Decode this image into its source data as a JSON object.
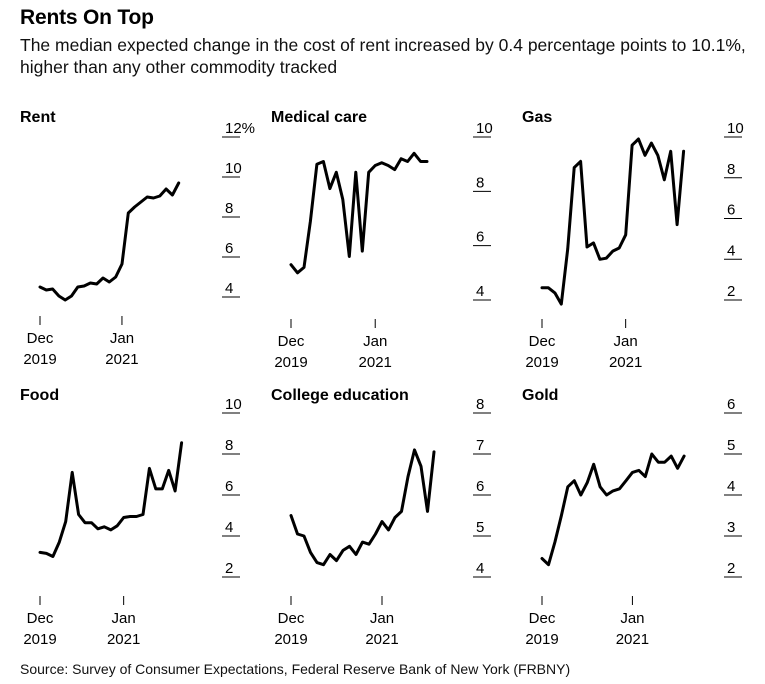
{
  "title": "Rents On Top",
  "subtitle": "The median expected change in the cost of rent increased by 0.4 percentage points to 10.1%, higher than any other commodity tracked",
  "source": "Source: Survey of Consumer Expectations, Federal Reserve Bank of New York (FRBNY)",
  "colors": {
    "line": "#000000",
    "grid": "#000000",
    "text": "#000000"
  },
  "chart_data": [
    {
      "type": "line",
      "title": "Rent",
      "x_ticks": [
        {
          "month": 0,
          "labels": [
            "Dec",
            "2019"
          ]
        },
        {
          "month": 13,
          "labels": [
            "Jan",
            "2021"
          ]
        }
      ],
      "y_ticks": [
        4,
        6,
        8,
        10,
        12
      ],
      "y_tick_labels": [
        "4",
        "6",
        "8",
        "10",
        "12%"
      ],
      "ylim": [
        3.5,
        12.5
      ],
      "series": [
        {
          "x": [
            0,
            1,
            2,
            3,
            4,
            5,
            6,
            7,
            8,
            9,
            10,
            11,
            12,
            13,
            14,
            15,
            16,
            17,
            18,
            19,
            20,
            21,
            22,
            23
          ],
          "values": [
            4.5,
            4.35,
            4.4,
            4.05,
            3.85,
            4.05,
            4.5,
            4.55,
            4.7,
            4.65,
            4.95,
            4.75,
            5.0,
            5.65,
            8.2,
            8.5,
            8.75,
            9.0,
            8.95,
            9.05,
            9.4,
            9.1,
            9.7,
            null
          ]
        }
      ]
    },
    {
      "type": "line",
      "title": "Medical care",
      "x_ticks": [
        {
          "month": 0,
          "labels": [
            "Dec",
            "2019"
          ]
        },
        {
          "month": 13,
          "labels": [
            "Jan",
            "2021"
          ]
        }
      ],
      "y_ticks": [
        4,
        6,
        8,
        10
      ],
      "y_tick_labels": [
        "4",
        "6",
        "8",
        "10"
      ],
      "ylim": [
        3.5,
        10.5
      ],
      "series": [
        {
          "x": [
            0,
            1,
            2,
            3,
            4,
            5,
            6,
            7,
            8,
            9,
            10,
            11,
            12,
            13,
            14,
            15,
            16,
            17,
            18,
            19,
            20,
            21,
            22,
            23
          ],
          "values": [
            5.3,
            5.0,
            5.2,
            6.9,
            9.0,
            9.1,
            8.1,
            8.7,
            7.7,
            5.6,
            8.7,
            5.8,
            8.7,
            8.95,
            9.05,
            8.95,
            8.8,
            9.2,
            9.1,
            9.4,
            9.1,
            9.1,
            null,
            null
          ]
        }
      ]
    },
    {
      "type": "line",
      "title": "Gas",
      "x_ticks": [
        {
          "month": 0,
          "labels": [
            "Dec",
            "2019"
          ]
        },
        {
          "month": 13,
          "labels": [
            "Jan",
            "2021"
          ]
        }
      ],
      "y_ticks": [
        2,
        4,
        6,
        8,
        10
      ],
      "y_tick_labels": [
        "2",
        "4",
        "6",
        "8",
        "10"
      ],
      "ylim": [
        1.5,
        10.5
      ],
      "series": [
        {
          "x": [
            0,
            1,
            2,
            3,
            4,
            5,
            6,
            7,
            8,
            9,
            10,
            11,
            12,
            13,
            14,
            15,
            16,
            17,
            18,
            19,
            20,
            21,
            22,
            23
          ],
          "values": [
            2.6,
            2.6,
            2.35,
            1.8,
            4.5,
            8.5,
            8.8,
            4.6,
            4.8,
            4.0,
            4.05,
            4.4,
            4.55,
            5.2,
            9.6,
            9.9,
            9.1,
            9.7,
            9.1,
            7.9,
            9.3,
            5.7,
            9.3,
            null
          ]
        }
      ]
    },
    {
      "type": "line",
      "title": "Food",
      "x_ticks": [
        {
          "month": 0,
          "labels": [
            "Dec",
            "2019"
          ]
        },
        {
          "month": 13,
          "labels": [
            "Jan",
            "2021"
          ]
        }
      ],
      "y_ticks": [
        2,
        4,
        6,
        8,
        10
      ],
      "y_tick_labels": [
        "2",
        "4",
        "6",
        "8",
        "10"
      ],
      "ylim": [
        1.5,
        10.5
      ],
      "series": [
        {
          "x": [
            0,
            1,
            2,
            3,
            4,
            5,
            6,
            7,
            8,
            9,
            10,
            11,
            12,
            13,
            14,
            15,
            16,
            17,
            18,
            19,
            20,
            21,
            22,
            23
          ],
          "values": [
            3.2,
            3.15,
            3.0,
            3.7,
            4.7,
            7.1,
            5.05,
            4.65,
            4.65,
            4.35,
            4.45,
            4.3,
            4.5,
            4.9,
            4.95,
            4.95,
            5.05,
            7.3,
            6.3,
            6.3,
            7.2,
            6.2,
            8.55,
            null
          ]
        }
      ]
    },
    {
      "type": "line",
      "title": "College education",
      "x_ticks": [
        {
          "month": 0,
          "labels": [
            "Dec",
            "2019"
          ]
        },
        {
          "month": 14,
          "labels": [
            "Jan",
            "2021"
          ]
        }
      ],
      "y_ticks": [
        4,
        5,
        6,
        7,
        8
      ],
      "y_tick_labels": [
        "4",
        "5",
        "6",
        "7",
        "8"
      ],
      "ylim": [
        3.75,
        8.25
      ],
      "series": [
        {
          "x": [
            0,
            1,
            2,
            3,
            4,
            5,
            6,
            7,
            8,
            9,
            10,
            11,
            12,
            13,
            14,
            15,
            16,
            17,
            18,
            19,
            20,
            21,
            22,
            23,
            24
          ],
          "values": [
            5.5,
            5.05,
            5.0,
            4.6,
            4.35,
            4.3,
            4.55,
            4.4,
            4.65,
            4.75,
            4.55,
            4.85,
            4.8,
            5.05,
            5.35,
            5.15,
            5.45,
            5.6,
            6.45,
            7.1,
            6.7,
            5.6,
            7.05,
            null,
            null
          ]
        }
      ]
    },
    {
      "type": "line",
      "title": "Gold",
      "x_ticks": [
        {
          "month": 0,
          "labels": [
            "Dec",
            "2019"
          ]
        },
        {
          "month": 14,
          "labels": [
            "Jan",
            "2021"
          ]
        }
      ],
      "y_ticks": [
        2,
        3,
        4,
        5,
        6
      ],
      "y_tick_labels": [
        "2",
        "3",
        "4",
        "5",
        "6"
      ],
      "ylim": [
        1.75,
        6.25
      ],
      "series": [
        {
          "x": [
            0,
            1,
            2,
            3,
            4,
            5,
            6,
            7,
            8,
            9,
            10,
            11,
            12,
            13,
            14,
            15,
            16,
            17,
            18,
            19,
            20,
            21,
            22,
            23,
            24
          ],
          "values": [
            2.45,
            2.3,
            2.85,
            3.5,
            4.2,
            4.35,
            4.0,
            4.3,
            4.75,
            4.2,
            4.0,
            4.1,
            4.15,
            4.35,
            4.55,
            4.6,
            4.45,
            5.0,
            4.8,
            4.8,
            4.95,
            4.65,
            4.95,
            null,
            null
          ]
        }
      ]
    }
  ]
}
